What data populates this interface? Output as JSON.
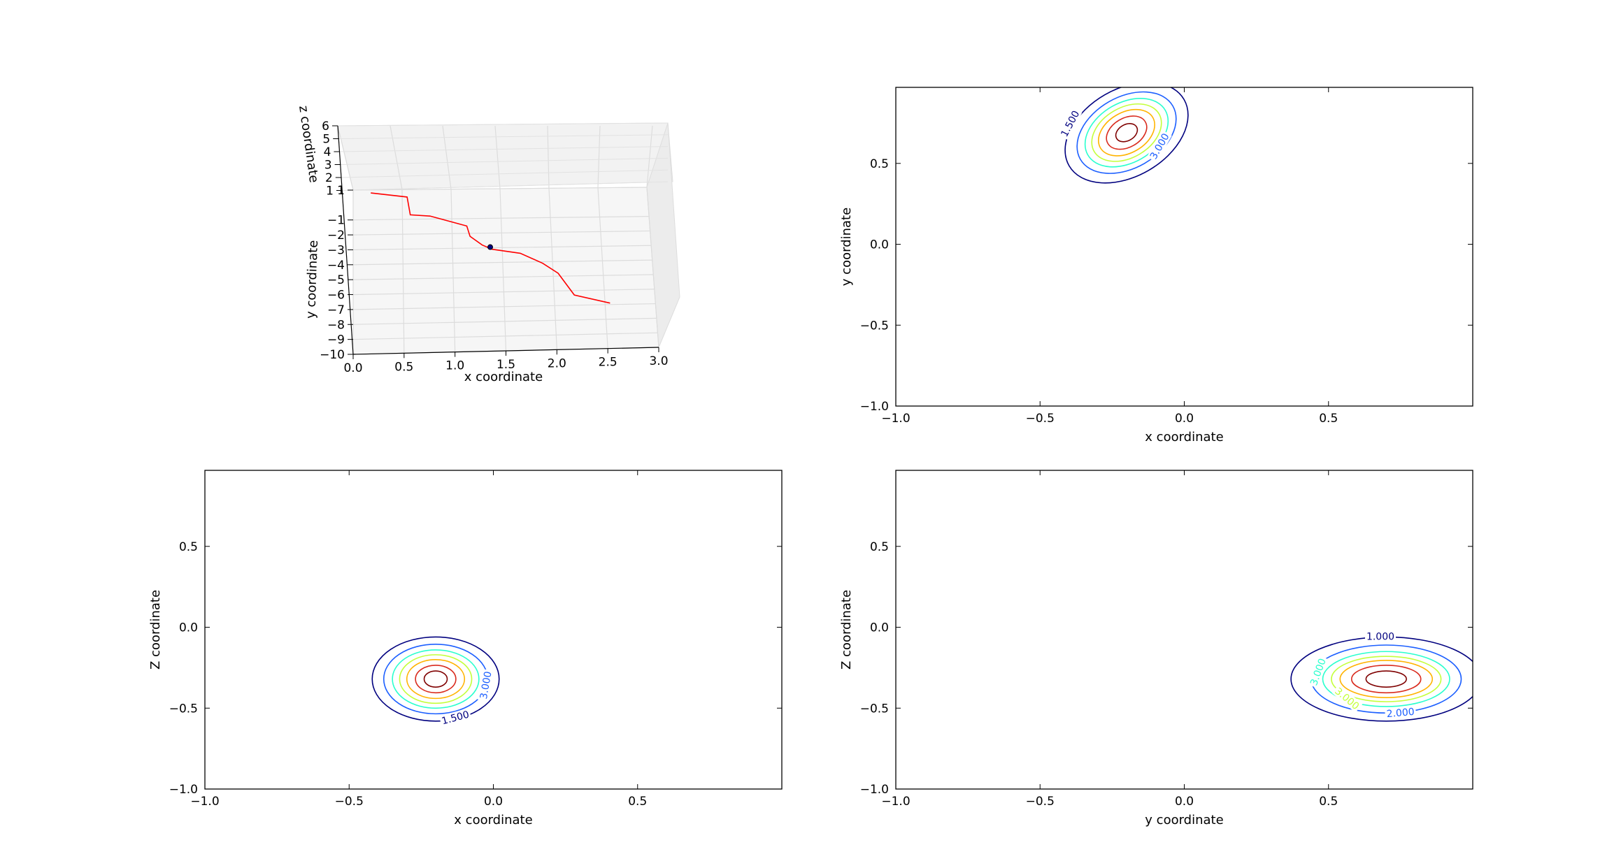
{
  "figure": {
    "background": "#ffffff"
  },
  "chart_data": [
    {
      "id": "trajectory3d",
      "type": "line",
      "projection": "3d",
      "xlabel": "x coordinate",
      "ylabel": "y coordinate",
      "zlabel": "z coordinate",
      "xticks": [
        "0.0",
        "0.5",
        "1.0",
        "1.5",
        "2.0",
        "2.5",
        "3.0"
      ],
      "yticks": [
        "1",
        "−1",
        "−2",
        "−3",
        "−4",
        "−5",
        "−6",
        "−7",
        "−8",
        "−9",
        "−10"
      ],
      "zticks": [
        "6",
        "5",
        "4",
        "3",
        "2",
        "1"
      ],
      "xlim": [
        0,
        3
      ],
      "ylim": [
        -10,
        1
      ],
      "zlim": [
        1,
        6
      ],
      "grid": true,
      "line_color": "#ff0000",
      "marker_color": "#000080",
      "series": [
        {
          "x": [
            0.18,
            0.55,
            0.58,
            0.78,
            1.15,
            1.18,
            1.3,
            1.4,
            1.68,
            1.9,
            2.05,
            2.2,
            2.55
          ],
          "y": [
            0.8,
            0.5,
            -0.7,
            -0.8,
            -1.5,
            -2.2,
            -2.8,
            -3.1,
            -3.4,
            -4.1,
            -4.8,
            -6.3,
            -6.9
          ]
        }
      ],
      "marker": {
        "x": 1.38,
        "y": -2.95
      }
    },
    {
      "id": "contour_xy",
      "type": "contour",
      "xlabel": "x coordinate",
      "ylabel": "y coordinate",
      "xlim": [
        -1.0,
        1.0
      ],
      "ylim": [
        -1.0,
        0.97
      ],
      "xticks": [
        "−1.0",
        "−0.5",
        "0.0",
        "0.5"
      ],
      "yticks": [
        "−1.0",
        "−0.5",
        "0.0",
        "0.5"
      ],
      "center": [
        -0.2,
        0.69
      ],
      "tilt_deg": 30,
      "levels": [
        {
          "rx": 0.04,
          "ry": 0.05,
          "color": "#7f0000"
        },
        {
          "rx": 0.075,
          "ry": 0.09,
          "color": "#d92b1e"
        },
        {
          "rx": 0.105,
          "ry": 0.125,
          "color": "#ffb300"
        },
        {
          "rx": 0.13,
          "ry": 0.155,
          "color": "#c4ff3a"
        },
        {
          "rx": 0.155,
          "ry": 0.185,
          "color": "#29ffce"
        },
        {
          "rx": 0.185,
          "ry": 0.22,
          "color": "#1c5fff"
        },
        {
          "rx": 0.23,
          "ry": 0.27,
          "color": "#00007f"
        }
      ],
      "labels": [
        {
          "text": "1.500",
          "x": -0.39,
          "y": 0.74,
          "rot": -62,
          "color": "#00007f"
        },
        {
          "text": "3.000",
          "x": -0.08,
          "y": 0.6,
          "rot": -60,
          "color": "#1c5fff"
        }
      ]
    },
    {
      "id": "contour_xz",
      "type": "contour",
      "xlabel": "x coordinate",
      "ylabel": "Z coordinate",
      "xlim": [
        -1.0,
        1.0
      ],
      "ylim": [
        -1.0,
        0.97
      ],
      "xticks": [
        "−1.0",
        "−0.5",
        "0.0",
        "0.5"
      ],
      "yticks": [
        "−1.0",
        "−0.5",
        "0.0",
        "0.5"
      ],
      "center": [
        -0.2,
        -0.32
      ],
      "tilt_deg": 0,
      "levels": [
        {
          "rx": 0.04,
          "ry": 0.05,
          "color": "#7f0000"
        },
        {
          "rx": 0.07,
          "ry": 0.085,
          "color": "#d92b1e"
        },
        {
          "rx": 0.1,
          "ry": 0.12,
          "color": "#ffb300"
        },
        {
          "rx": 0.125,
          "ry": 0.15,
          "color": "#c4ff3a"
        },
        {
          "rx": 0.15,
          "ry": 0.18,
          "color": "#29ffce"
        },
        {
          "rx": 0.18,
          "ry": 0.215,
          "color": "#1c5fff"
        },
        {
          "rx": 0.22,
          "ry": 0.26,
          "color": "#00007f"
        }
      ],
      "labels": [
        {
          "text": "3.000",
          "x": -0.02,
          "y": -0.36,
          "rot": -80,
          "color": "#1c5fff"
        },
        {
          "text": "1.500",
          "x": -0.13,
          "y": -0.57,
          "rot": -15,
          "color": "#00007f"
        }
      ]
    },
    {
      "id": "contour_yz",
      "type": "contour",
      "xlabel": "y coordinate",
      "ylabel": "Z coordinate",
      "xlim": [
        -1.0,
        1.0
      ],
      "ylim": [
        -1.0,
        0.97
      ],
      "xticks": [
        "−1.0",
        "−0.5",
        "0.0",
        "0.5"
      ],
      "yticks": [
        "−1.0",
        "−0.5",
        "0.0",
        "0.5"
      ],
      "center": [
        0.7,
        -0.32
      ],
      "tilt_deg": 0,
      "levels": [
        {
          "rx": 0.07,
          "ry": 0.05,
          "color": "#7f0000"
        },
        {
          "rx": 0.12,
          "ry": 0.085,
          "color": "#d92b1e"
        },
        {
          "rx": 0.16,
          "ry": 0.115,
          "color": "#ffb300"
        },
        {
          "rx": 0.19,
          "ry": 0.14,
          "color": "#c4ff3a"
        },
        {
          "rx": 0.22,
          "ry": 0.17,
          "color": "#29ffce"
        },
        {
          "rx": 0.26,
          "ry": 0.21,
          "color": "#1c5fff"
        },
        {
          "rx": 0.33,
          "ry": 0.26,
          "color": "#00007f"
        }
      ],
      "labels": [
        {
          "text": "1.000",
          "x": 0.68,
          "y": -0.07,
          "rot": 0,
          "color": "#00007f"
        },
        {
          "text": "2.000",
          "x": 0.75,
          "y": -0.54,
          "rot": -5,
          "color": "#1c5fff"
        },
        {
          "text": "3.000",
          "x": 0.47,
          "y": -0.28,
          "rot": -70,
          "color": "#29ffce"
        },
        {
          "text": "3.000",
          "x": 0.56,
          "y": -0.45,
          "rot": 40,
          "color": "#c4ff3a"
        }
      ]
    }
  ]
}
